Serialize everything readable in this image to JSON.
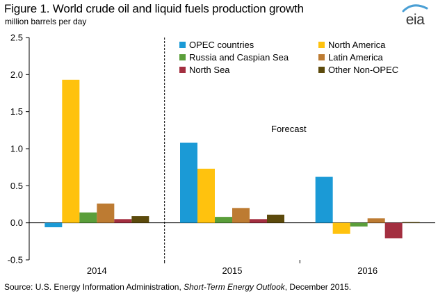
{
  "header": {
    "title": "Figure 1. World crude oil and liquid fuels production growth",
    "units": "million barrels per day"
  },
  "logo": {
    "text": "eia",
    "icon": "eia-logo-icon",
    "arc_color": "#4a9fd4"
  },
  "footer": {
    "prefix": "Source: U.S. Energy Information Administration, ",
    "publication": "Short-Term Energy Outlook",
    "suffix": ", December 2015."
  },
  "chart_data": {
    "type": "bar",
    "categories": [
      "2014",
      "2015",
      "2016"
    ],
    "series": [
      {
        "name": "OPEC countries",
        "color": "#1b9ad6",
        "values": [
          -0.06,
          1.08,
          0.62
        ]
      },
      {
        "name": "North America",
        "color": "#ffc20e",
        "values": [
          1.93,
          0.73,
          -0.15
        ]
      },
      {
        "name": "Russia and Caspian Sea",
        "color": "#5a9e3a",
        "values": [
          0.14,
          0.08,
          -0.05
        ]
      },
      {
        "name": "Latin America",
        "color": "#bd7b32",
        "values": [
          0.26,
          0.2,
          0.06
        ]
      },
      {
        "name": "North Sea",
        "color": "#a32f40",
        "values": [
          0.05,
          0.05,
          -0.21
        ]
      },
      {
        "name": "Other Non-OPEC",
        "color": "#5c4a0c",
        "values": [
          0.09,
          0.11,
          0.01
        ]
      }
    ],
    "yticks": [
      -0.5,
      0.0,
      0.5,
      1.0,
      1.5,
      2.0,
      2.5
    ],
    "ytick_labels": [
      "-0.5",
      "0.0",
      "0.5",
      "1.0",
      "1.5",
      "2.0",
      "2.5"
    ],
    "ylim": [
      -0.5,
      2.5
    ],
    "grid": false,
    "legend_position": "top-right",
    "annotation": "Forecast",
    "forecast_divider_after": "2014"
  }
}
